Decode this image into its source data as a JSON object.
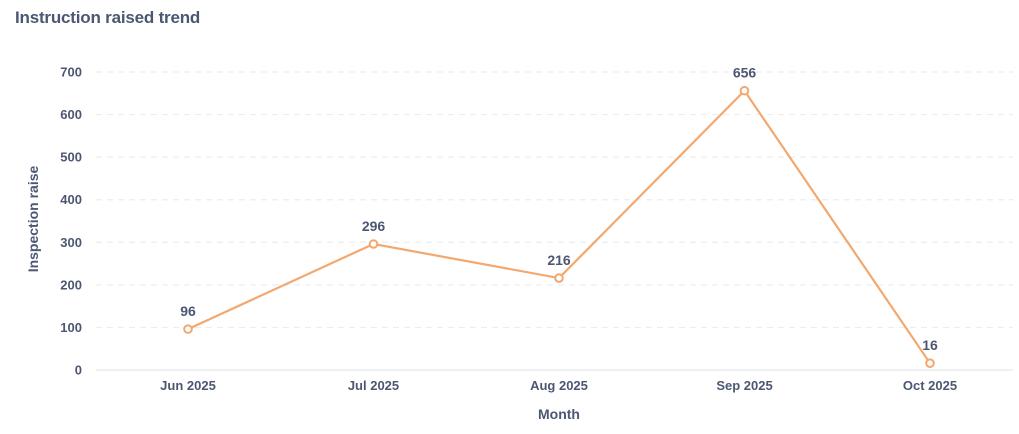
{
  "title": "Instruction raised trend",
  "colors": {
    "series": "#f2a86f",
    "text": "#4c5773",
    "grid": "#ecedf0",
    "axis": "#e4e6ea"
  },
  "chart_data": {
    "type": "line",
    "title": "Instruction raised trend",
    "xlabel": "Month",
    "ylabel": "Inspection raise",
    "categories": [
      "Jun 2025",
      "Jul 2025",
      "Aug 2025",
      "Sep 2025",
      "Oct 2025"
    ],
    "series": [
      {
        "values": [
          96,
          296,
          216,
          656,
          16
        ]
      }
    ],
    "ylim": [
      0,
      700
    ],
    "yticks": [
      0,
      100,
      200,
      300,
      400,
      500,
      600,
      700
    ],
    "data_labels": [
      "96",
      "296",
      "216",
      "656",
      "16"
    ],
    "grid": true,
    "legend": "none"
  }
}
